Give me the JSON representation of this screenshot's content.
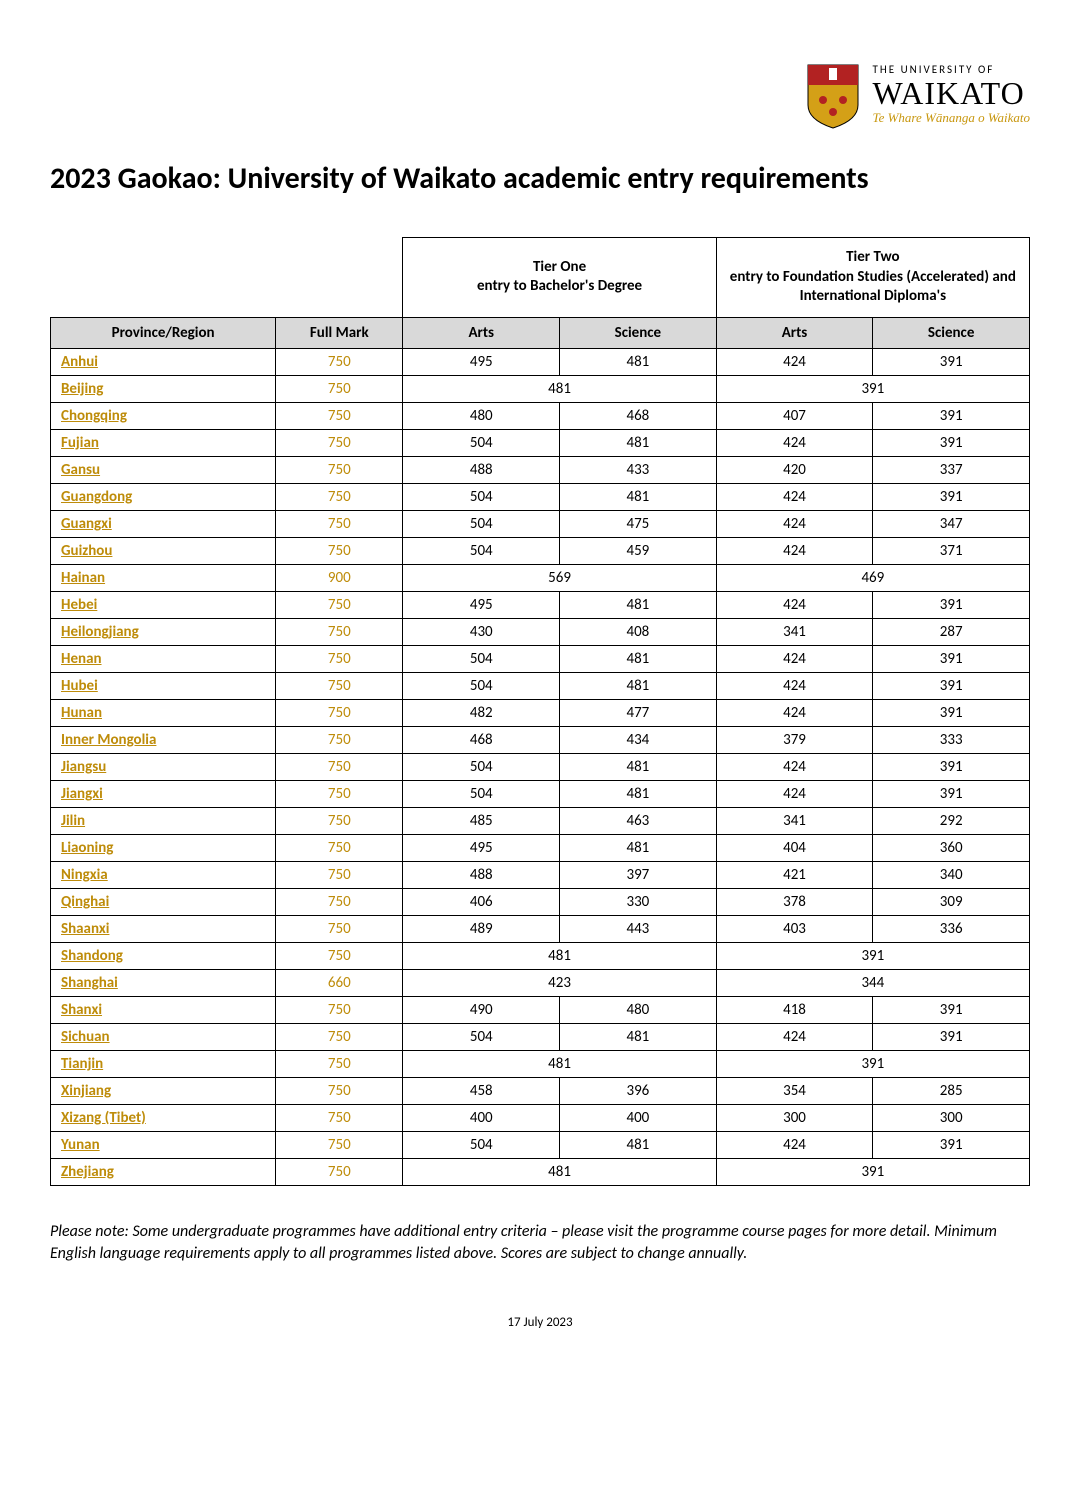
{
  "logo": {
    "line1": "THE UNIVERSITY OF",
    "line2": "WAIKATO",
    "line3": "Te Whare Wānanga o Waikato"
  },
  "title": "2023 Gaokao: University of Waikato academic entry requirements",
  "headers": {
    "tier1": "Tier One\nentry to Bachelor's Degree",
    "tier2": "Tier Two\nentry to Foundation Studies (Accelerated) and International Diploma's",
    "province": "Province/Region",
    "fullmark": "Full Mark",
    "arts": "Arts",
    "science": "Science"
  },
  "rows": [
    {
      "province": "Anhui",
      "fullmark": "750",
      "t1a": "495",
      "t1s": "481",
      "t2a": "424",
      "t2s": "391"
    },
    {
      "province": "Beijing",
      "fullmark": "750",
      "t1": "481",
      "t2": "391"
    },
    {
      "province": "Chongqing",
      "fullmark": "750",
      "t1a": "480",
      "t1s": "468",
      "t2a": "407",
      "t2s": "391"
    },
    {
      "province": "Fujian",
      "fullmark": "750",
      "t1a": "504",
      "t1s": "481",
      "t2a": "424",
      "t2s": "391"
    },
    {
      "province": "Gansu",
      "fullmark": "750",
      "t1a": "488",
      "t1s": "433",
      "t2a": "420",
      "t2s": "337"
    },
    {
      "province": "Guangdong",
      "fullmark": "750",
      "t1a": "504",
      "t1s": "481",
      "t2a": "424",
      "t2s": "391"
    },
    {
      "province": "Guangxi",
      "fullmark": "750",
      "t1a": "504",
      "t1s": "475",
      "t2a": "424",
      "t2s": "347"
    },
    {
      "province": "Guizhou",
      "fullmark": "750",
      "t1a": "504",
      "t1s": "459",
      "t2a": "424",
      "t2s": "371"
    },
    {
      "province": "Hainan",
      "fullmark": "900",
      "t1": "569",
      "t2": "469"
    },
    {
      "province": "Hebei",
      "fullmark": "750",
      "t1a": "495",
      "t1s": "481",
      "t2a": "424",
      "t2s": "391"
    },
    {
      "province": "Heilongjiang",
      "fullmark": "750",
      "t1a": "430",
      "t1s": "408",
      "t2a": "341",
      "t2s": "287"
    },
    {
      "province": "Henan",
      "fullmark": "750",
      "t1a": "504",
      "t1s": "481",
      "t2a": "424",
      "t2s": "391"
    },
    {
      "province": "Hubei",
      "fullmark": "750",
      "t1a": "504",
      "t1s": "481",
      "t2a": "424",
      "t2s": "391"
    },
    {
      "province": "Hunan",
      "fullmark": "750",
      "t1a": "482",
      "t1s": "477",
      "t2a": "424",
      "t2s": "391"
    },
    {
      "province": "Inner Mongolia",
      "fullmark": "750",
      "t1a": "468",
      "t1s": "434",
      "t2a": "379",
      "t2s": "333"
    },
    {
      "province": "Jiangsu",
      "fullmark": "750",
      "t1a": "504",
      "t1s": "481",
      "t2a": "424",
      "t2s": "391"
    },
    {
      "province": "Jiangxi",
      "fullmark": "750",
      "t1a": "504",
      "t1s": "481",
      "t2a": "424",
      "t2s": "391"
    },
    {
      "province": "Jilin",
      "fullmark": "750",
      "t1a": "485",
      "t1s": "463",
      "t2a": "341",
      "t2s": "292"
    },
    {
      "province": "Liaoning",
      "fullmark": "750",
      "t1a": "495",
      "t1s": "481",
      "t2a": "404",
      "t2s": "360"
    },
    {
      "province": "Ningxia",
      "fullmark": "750",
      "t1a": "488",
      "t1s": "397",
      "t2a": "421",
      "t2s": "340"
    },
    {
      "province": "Qinghai",
      "fullmark": "750",
      "t1a": "406",
      "t1s": "330",
      "t2a": "378",
      "t2s": "309"
    },
    {
      "province": "Shaanxi",
      "fullmark": "750",
      "t1a": "489",
      "t1s": "443",
      "t2a": "403",
      "t2s": "336"
    },
    {
      "province": "Shandong",
      "fullmark": "750",
      "t1": "481",
      "t2": "391"
    },
    {
      "province": "Shanghai",
      "fullmark": "660",
      "t1": "423",
      "t2": "344"
    },
    {
      "province": "Shanxi",
      "fullmark": "750",
      "t1a": "490",
      "t1s": "480",
      "t2a": "418",
      "t2s": "391"
    },
    {
      "province": "Sichuan",
      "fullmark": "750",
      "t1a": "504",
      "t1s": "481",
      "t2a": "424",
      "t2s": "391"
    },
    {
      "province": "Tianjin",
      "fullmark": "750",
      "t1": "481",
      "t2": "391"
    },
    {
      "province": "Xinjiang",
      "fullmark": "750",
      "t1a": "458",
      "t1s": "396",
      "t2a": "354",
      "t2s": "285"
    },
    {
      "province": "Xizang (Tibet)",
      "fullmark": "750",
      "t1a": "400",
      "t1s": "400",
      "t2a": "300",
      "t2s": "300"
    },
    {
      "province": "Yunan",
      "fullmark": "750",
      "t1a": "504",
      "t1s": "481",
      "t2a": "424",
      "t2s": "391"
    },
    {
      "province": "Zhejiang",
      "fullmark": "750",
      "t1": "481",
      "t2": "391"
    }
  ],
  "footnote": "Please note: Some undergraduate programmes have additional entry criteria – please visit the programme course pages for more detail. Minimum English language requirements apply to all programmes listed above. Scores are subject to change annually.",
  "footerDate": "17 July 2023",
  "colors": {
    "gold": "#be8c0a",
    "headerBg": "#d9d9d9",
    "border": "#000000",
    "shieldGold": "#d4a017",
    "shieldRed": "#b22222"
  },
  "columnWidths": {
    "province": "23%",
    "fullmark": "13%",
    "tierCol": "16%"
  }
}
